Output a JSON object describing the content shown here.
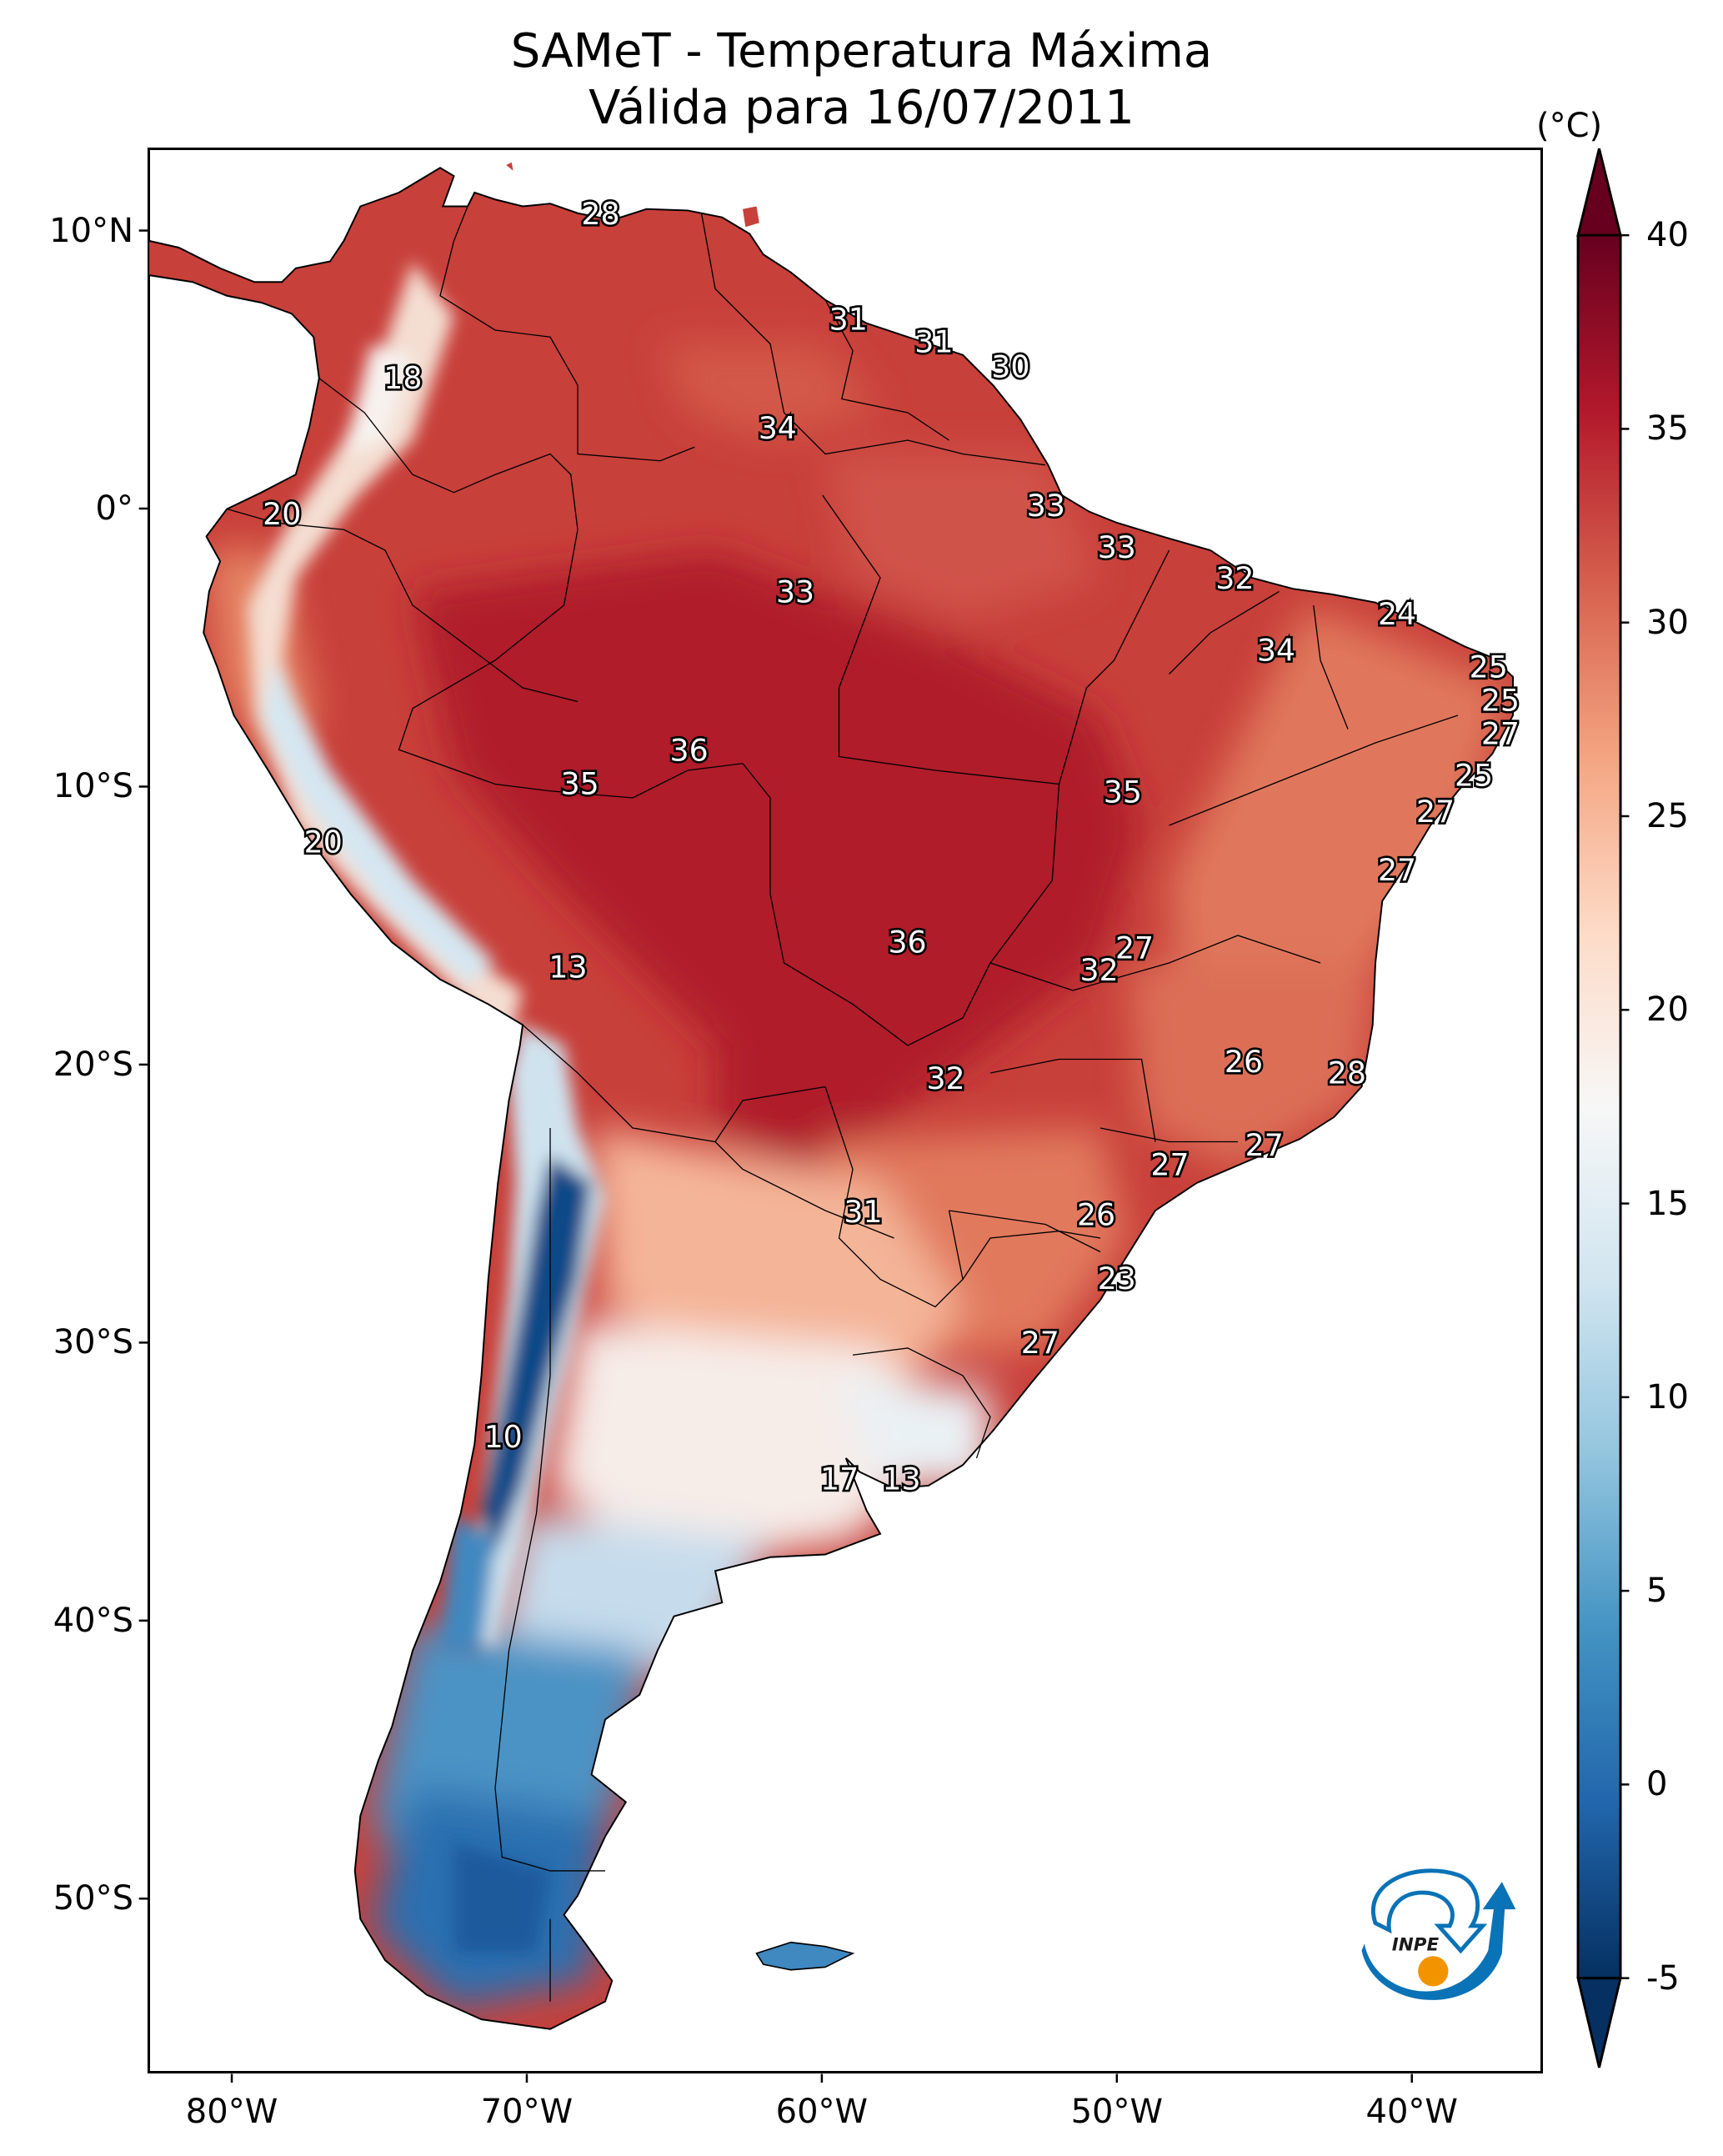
{
  "title": {
    "line1": "SAMeT - Temperatura Máxima",
    "line2": "Válida para 16/07/2011"
  },
  "colorbar": {
    "unit_label": "(°C)",
    "min": -5,
    "max": 40,
    "extend": "both",
    "colormap": "RdBu_r",
    "ticks": [
      {
        "value": 40,
        "label": "40"
      },
      {
        "value": 35,
        "label": "35"
      },
      {
        "value": 30,
        "label": "30"
      },
      {
        "value": 25,
        "label": "25"
      },
      {
        "value": 20,
        "label": "20"
      },
      {
        "value": 15,
        "label": "15"
      },
      {
        "value": 10,
        "label": "10"
      },
      {
        "value": 5,
        "label": "5"
      },
      {
        "value": 0,
        "label": "0"
      },
      {
        "value": -5,
        "label": "-5"
      }
    ],
    "stops": [
      "#053061",
      "#2166ac",
      "#4393c3",
      "#92c5de",
      "#d1e5f0",
      "#f7f7f7",
      "#fddbc7",
      "#f4a582",
      "#d6604d",
      "#b2182b",
      "#67001f"
    ]
  },
  "axes": {
    "lat_ticks": [
      {
        "value": 10,
        "label": "10°N"
      },
      {
        "value": 0,
        "label": "0°"
      },
      {
        "value": -10,
        "label": "10°S"
      },
      {
        "value": -20,
        "label": "20°S"
      },
      {
        "value": -30,
        "label": "30°S"
      },
      {
        "value": -40,
        "label": "40°S"
      },
      {
        "value": -50,
        "label": "50°S"
      }
    ],
    "lon_ticks": [
      {
        "value": -80,
        "label": "80°W"
      },
      {
        "value": -70,
        "label": "70°W"
      },
      {
        "value": -60,
        "label": "60°W"
      },
      {
        "value": -50,
        "label": "50°W"
      },
      {
        "value": -40,
        "label": "40°W"
      }
    ]
  },
  "logo": {
    "text": "INPE",
    "primary": "#0a72b6",
    "accent": "#f29400"
  },
  "chart_data": {
    "type": "heatmap",
    "title": "SAMeT - Temperatura Máxima Válida para 16/07/2011",
    "xlabel": "",
    "ylabel": "",
    "xlim": [
      -82.8,
      -35.6
    ],
    "ylim": [
      -56,
      13
    ],
    "value_range": [
      -5,
      40
    ],
    "units": "°C",
    "grid": false,
    "legend": "colorbar-right",
    "point_labels": [
      {
        "lon": -67.5,
        "lat": 10.6,
        "value": 28
      },
      {
        "lon": -74.2,
        "lat": 4.7,
        "value": 18
      },
      {
        "lon": -59.1,
        "lat": 6.8,
        "value": 31
      },
      {
        "lon": -56.2,
        "lat": 6.0,
        "value": 31
      },
      {
        "lon": -53.6,
        "lat": 5.1,
        "value": 30
      },
      {
        "lon": -61.5,
        "lat": 2.9,
        "value": 34
      },
      {
        "lon": -78.3,
        "lat": -0.2,
        "value": 20
      },
      {
        "lon": -52.4,
        "lat": 0.1,
        "value": 33
      },
      {
        "lon": -50.0,
        "lat": -1.4,
        "value": 33
      },
      {
        "lon": -46.0,
        "lat": -2.5,
        "value": 32
      },
      {
        "lon": -60.9,
        "lat": -3.0,
        "value": 33
      },
      {
        "lon": -40.5,
        "lat": -3.8,
        "value": 24
      },
      {
        "lon": -44.6,
        "lat": -5.1,
        "value": 34
      },
      {
        "lon": -37.4,
        "lat": -5.7,
        "value": 25
      },
      {
        "lon": -37.0,
        "lat": -6.9,
        "value": 25
      },
      {
        "lon": -37.0,
        "lat": -8.1,
        "value": 27
      },
      {
        "lon": -64.5,
        "lat": -8.7,
        "value": 36
      },
      {
        "lon": -37.9,
        "lat": -9.6,
        "value": 25
      },
      {
        "lon": -68.2,
        "lat": -9.9,
        "value": 35
      },
      {
        "lon": -49.8,
        "lat": -10.2,
        "value": 35
      },
      {
        "lon": -39.2,
        "lat": -10.9,
        "value": 27
      },
      {
        "lon": -76.9,
        "lat": -12.0,
        "value": 20
      },
      {
        "lon": -40.5,
        "lat": -13.0,
        "value": 27
      },
      {
        "lon": -57.1,
        "lat": -15.6,
        "value": 36
      },
      {
        "lon": -49.4,
        "lat": -15.8,
        "value": 27
      },
      {
        "lon": -68.6,
        "lat": -16.5,
        "value": 13
      },
      {
        "lon": -50.6,
        "lat": -16.6,
        "value": 32
      },
      {
        "lon": -45.7,
        "lat": -19.9,
        "value": 26
      },
      {
        "lon": -42.2,
        "lat": -20.3,
        "value": 28
      },
      {
        "lon": -55.8,
        "lat": -20.5,
        "value": 32
      },
      {
        "lon": -45.0,
        "lat": -22.9,
        "value": 27
      },
      {
        "lon": -48.2,
        "lat": -23.6,
        "value": 27
      },
      {
        "lon": -50.7,
        "lat": -25.4,
        "value": 26
      },
      {
        "lon": -58.6,
        "lat": -25.3,
        "value": 31
      },
      {
        "lon": -50.0,
        "lat": -27.7,
        "value": 23
      },
      {
        "lon": -52.6,
        "lat": -30.0,
        "value": 27
      },
      {
        "lon": -70.8,
        "lat": -33.4,
        "value": 10
      },
      {
        "lon": -59.4,
        "lat": -34.9,
        "value": 17
      },
      {
        "lon": -57.3,
        "lat": -34.9,
        "value": 13
      }
    ]
  }
}
